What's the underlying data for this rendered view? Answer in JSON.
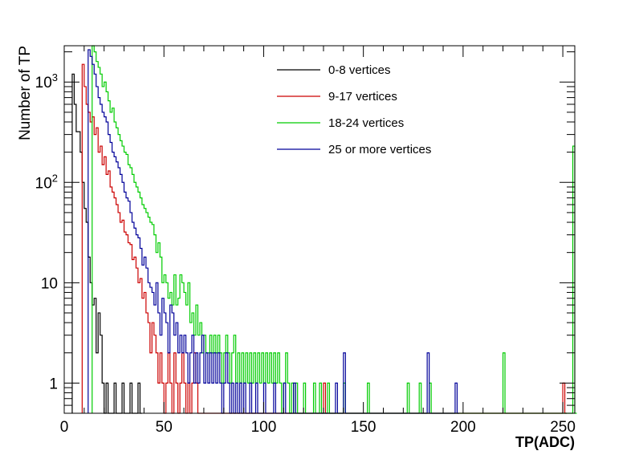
{
  "chart_data": {
    "type": "line",
    "style": "step-histogram",
    "xlabel": "TP(ADC)",
    "ylabel": "Number of TP",
    "xlim": [
      0,
      256
    ],
    "ylim": [
      0.5,
      2300
    ],
    "yscale": "log",
    "x_ticks": [
      0,
      50,
      100,
      150,
      200,
      250
    ],
    "x_tick_labels": [
      "0",
      "50",
      "100",
      "150",
      "200",
      "250"
    ],
    "y_ticks": [
      {
        "value": 1,
        "base": "1",
        "exp": ""
      },
      {
        "value": 10,
        "base": "10",
        "exp": ""
      },
      {
        "value": 100,
        "base": "10",
        "exp": "2"
      },
      {
        "value": 1000,
        "base": "10",
        "exp": "3"
      }
    ],
    "legend_position": "top-center",
    "grid": false,
    "series": [
      {
        "name": "0-8 vertices",
        "color": "#000000",
        "points": [
          [
            4,
            1200
          ],
          [
            5,
            600
          ],
          [
            6,
            320
          ],
          [
            8,
            200
          ],
          [
            9,
            100
          ],
          [
            10,
            55
          ],
          [
            11,
            40
          ],
          [
            12,
            18
          ],
          [
            13,
            10
          ],
          [
            14,
            6
          ],
          [
            15,
            7
          ],
          [
            16,
            2
          ],
          [
            17,
            5
          ],
          [
            18,
            3
          ],
          [
            19,
            1
          ],
          [
            20,
            0.5
          ],
          [
            21,
            1
          ],
          [
            22,
            0.5
          ],
          [
            25,
            1
          ],
          [
            26,
            0.5
          ],
          [
            29,
            1
          ],
          [
            30,
            0.5
          ],
          [
            33,
            1
          ],
          [
            34,
            0.5
          ],
          [
            37,
            1
          ],
          [
            38,
            0.5
          ]
        ]
      },
      {
        "name": "9-17 vertices",
        "color": "#cc0000",
        "points": [
          [
            9,
            1500
          ],
          [
            10,
            900
          ],
          [
            11,
            600
          ],
          [
            12,
            500
          ],
          [
            13,
            400
          ],
          [
            14,
            450
          ],
          [
            15,
            300
          ],
          [
            16,
            350
          ],
          [
            17,
            200
          ],
          [
            18,
            230
          ],
          [
            19,
            150
          ],
          [
            20,
            180
          ],
          [
            21,
            120
          ],
          [
            22,
            130
          ],
          [
            23,
            90
          ],
          [
            24,
            80
          ],
          [
            25,
            70
          ],
          [
            26,
            60
          ],
          [
            27,
            50
          ],
          [
            28,
            40
          ],
          [
            29,
            42
          ],
          [
            30,
            32
          ],
          [
            31,
            30
          ],
          [
            32,
            25
          ],
          [
            33,
            24
          ],
          [
            34,
            17
          ],
          [
            35,
            18
          ],
          [
            36,
            14
          ],
          [
            37,
            10
          ],
          [
            38,
            11
          ],
          [
            39,
            7
          ],
          [
            40,
            8
          ],
          [
            41,
            5
          ],
          [
            42,
            4
          ],
          [
            43,
            2
          ],
          [
            44,
            4
          ],
          [
            45,
            3
          ],
          [
            46,
            2
          ],
          [
            47,
            1
          ],
          [
            48,
            2
          ],
          [
            49,
            1
          ],
          [
            50,
            0.5
          ],
          [
            51,
            1
          ],
          [
            52,
            2
          ],
          [
            53,
            1
          ],
          [
            54,
            0.5
          ],
          [
            55,
            2
          ],
          [
            56,
            1
          ],
          [
            57,
            0.5
          ],
          [
            58,
            1
          ],
          [
            59,
            2
          ],
          [
            60,
            1
          ],
          [
            61,
            0.5
          ],
          [
            62,
            1
          ],
          [
            63,
            0.5
          ],
          [
            64,
            1
          ],
          [
            65,
            2
          ],
          [
            66,
            1
          ],
          [
            67,
            0.5
          ],
          [
            130,
            1
          ],
          [
            131,
            0.5
          ],
          [
            250,
            1
          ],
          [
            251,
            0.5
          ]
        ]
      },
      {
        "name": "18-24 vertices",
        "color": "#00cc00",
        "points": [
          [
            14,
            2300
          ],
          [
            15,
            2000
          ],
          [
            16,
            1600
          ],
          [
            17,
            1400
          ],
          [
            18,
            1200
          ],
          [
            19,
            900
          ],
          [
            20,
            1000
          ],
          [
            21,
            800
          ],
          [
            22,
            650
          ],
          [
            23,
            500
          ],
          [
            24,
            550
          ],
          [
            25,
            400
          ],
          [
            26,
            350
          ],
          [
            27,
            300
          ],
          [
            28,
            260
          ],
          [
            29,
            230
          ],
          [
            30,
            200
          ],
          [
            31,
            190
          ],
          [
            32,
            150
          ],
          [
            33,
            140
          ],
          [
            34,
            120
          ],
          [
            35,
            100
          ],
          [
            36,
            90
          ],
          [
            37,
            80
          ],
          [
            38,
            70
          ],
          [
            39,
            60
          ],
          [
            40,
            55
          ],
          [
            41,
            50
          ],
          [
            42,
            45
          ],
          [
            43,
            40
          ],
          [
            44,
            38
          ],
          [
            45,
            30
          ],
          [
            46,
            20
          ],
          [
            47,
            25
          ],
          [
            48,
            18
          ],
          [
            49,
            10
          ],
          [
            50,
            12
          ],
          [
            51,
            10
          ],
          [
            52,
            7
          ],
          [
            53,
            8
          ],
          [
            54,
            6
          ],
          [
            55,
            12
          ],
          [
            56,
            6
          ],
          [
            57,
            7
          ],
          [
            58,
            12
          ],
          [
            59,
            10
          ],
          [
            60,
            8
          ],
          [
            61,
            6
          ],
          [
            62,
            10
          ],
          [
            63,
            4
          ],
          [
            64,
            5
          ],
          [
            65,
            3
          ],
          [
            66,
            6
          ],
          [
            67,
            3
          ],
          [
            68,
            4
          ],
          [
            69,
            2
          ],
          [
            70,
            3
          ],
          [
            71,
            2
          ],
          [
            72,
            2
          ],
          [
            73,
            3
          ],
          [
            74,
            2
          ],
          [
            75,
            3
          ],
          [
            76,
            2
          ],
          [
            77,
            3
          ],
          [
            78,
            2
          ],
          [
            79,
            1
          ],
          [
            80,
            2
          ],
          [
            81,
            3
          ],
          [
            82,
            2
          ],
          [
            83,
            1
          ],
          [
            84,
            2
          ],
          [
            85,
            3
          ],
          [
            86,
            1
          ],
          [
            87,
            2
          ],
          [
            88,
            1
          ],
          [
            89,
            2
          ],
          [
            90,
            1
          ],
          [
            91,
            2
          ],
          [
            92,
            1
          ],
          [
            93,
            2
          ],
          [
            94,
            1
          ],
          [
            95,
            2
          ],
          [
            96,
            1
          ],
          [
            97,
            2
          ],
          [
            98,
            1
          ],
          [
            99,
            2
          ],
          [
            100,
            1
          ],
          [
            101,
            2
          ],
          [
            102,
            1
          ],
          [
            103,
            2
          ],
          [
            104,
            1
          ],
          [
            105,
            2
          ],
          [
            106,
            1
          ],
          [
            107,
            2
          ],
          [
            108,
            1
          ],
          [
            109,
            0.5
          ],
          [
            110,
            1
          ],
          [
            111,
            2
          ],
          [
            112,
            1
          ],
          [
            113,
            0.5
          ],
          [
            114,
            1
          ],
          [
            115,
            0.5
          ],
          [
            116,
            1
          ],
          [
            117,
            0.5
          ],
          [
            120,
            1
          ],
          [
            121,
            0.5
          ],
          [
            125,
            1
          ],
          [
            126,
            0.5
          ],
          [
            128,
            1
          ],
          [
            129,
            0.5
          ],
          [
            132,
            1
          ],
          [
            133,
            0.5
          ],
          [
            140,
            1
          ],
          [
            141,
            0.5
          ],
          [
            152,
            1
          ],
          [
            153,
            0.5
          ],
          [
            172,
            1
          ],
          [
            173,
            0.5
          ],
          [
            178,
            1
          ],
          [
            179,
            0.5
          ],
          [
            183,
            1
          ],
          [
            184,
            0.5
          ],
          [
            220,
            2
          ],
          [
            221,
            0.5
          ],
          [
            255,
            230
          ],
          [
            256,
            0.5
          ]
        ]
      },
      {
        "name": "25 or more vertices",
        "color": "#000099",
        "points": [
          [
            12,
            2100
          ],
          [
            13,
            1800
          ],
          [
            14,
            1500
          ],
          [
            15,
            1200
          ],
          [
            16,
            900
          ],
          [
            17,
            700
          ],
          [
            18,
            600
          ],
          [
            19,
            500
          ],
          [
            20,
            450
          ],
          [
            21,
            400
          ],
          [
            22,
            300
          ],
          [
            23,
            250
          ],
          [
            24,
            200
          ],
          [
            25,
            180
          ],
          [
            26,
            160
          ],
          [
            27,
            140
          ],
          [
            28,
            120
          ],
          [
            29,
            100
          ],
          [
            30,
            80
          ],
          [
            31,
            70
          ],
          [
            32,
            65
          ],
          [
            33,
            50
          ],
          [
            34,
            40
          ],
          [
            35,
            35
          ],
          [
            36,
            30
          ],
          [
            37,
            28
          ],
          [
            38,
            22
          ],
          [
            39,
            15
          ],
          [
            40,
            18
          ],
          [
            41,
            14
          ],
          [
            42,
            10
          ],
          [
            43,
            9
          ],
          [
            44,
            8
          ],
          [
            45,
            6
          ],
          [
            46,
            10
          ],
          [
            47,
            5
          ],
          [
            48,
            3
          ],
          [
            49,
            7
          ],
          [
            50,
            5
          ],
          [
            51,
            4
          ],
          [
            52,
            2
          ],
          [
            53,
            6
          ],
          [
            54,
            5
          ],
          [
            55,
            3
          ],
          [
            56,
            4
          ],
          [
            57,
            2
          ],
          [
            58,
            3
          ],
          [
            59,
            2
          ],
          [
            60,
            3
          ],
          [
            61,
            2
          ],
          [
            62,
            1
          ],
          [
            63,
            2
          ],
          [
            64,
            3
          ],
          [
            65,
            1
          ],
          [
            66,
            2
          ],
          [
            67,
            1
          ],
          [
            68,
            2
          ],
          [
            69,
            3
          ],
          [
            70,
            1
          ],
          [
            71,
            2
          ],
          [
            72,
            1
          ],
          [
            73,
            2
          ],
          [
            74,
            1
          ],
          [
            75,
            2
          ],
          [
            76,
            1
          ],
          [
            77,
            2
          ],
          [
            78,
            1
          ],
          [
            79,
            0.5
          ],
          [
            80,
            1
          ],
          [
            81,
            2
          ],
          [
            82,
            1
          ],
          [
            83,
            0.5
          ],
          [
            84,
            1
          ],
          [
            85,
            0.5
          ],
          [
            86,
            1
          ],
          [
            87,
            0.5
          ],
          [
            88,
            1
          ],
          [
            89,
            0.5
          ],
          [
            90,
            1
          ],
          [
            91,
            0.5
          ],
          [
            93,
            1
          ],
          [
            94,
            0.5
          ],
          [
            96,
            1
          ],
          [
            97,
            0.5
          ],
          [
            100,
            1
          ],
          [
            101,
            0.5
          ],
          [
            105,
            1
          ],
          [
            106,
            0.5
          ],
          [
            110,
            1
          ],
          [
            111,
            0.5
          ],
          [
            115,
            1
          ],
          [
            116,
            0.5
          ],
          [
            136,
            1
          ],
          [
            137,
            0.5
          ],
          [
            140,
            2
          ],
          [
            141,
            0.5
          ],
          [
            182,
            2
          ],
          [
            183,
            0.5
          ],
          [
            196,
            1
          ],
          [
            197,
            0.5
          ]
        ]
      }
    ]
  }
}
